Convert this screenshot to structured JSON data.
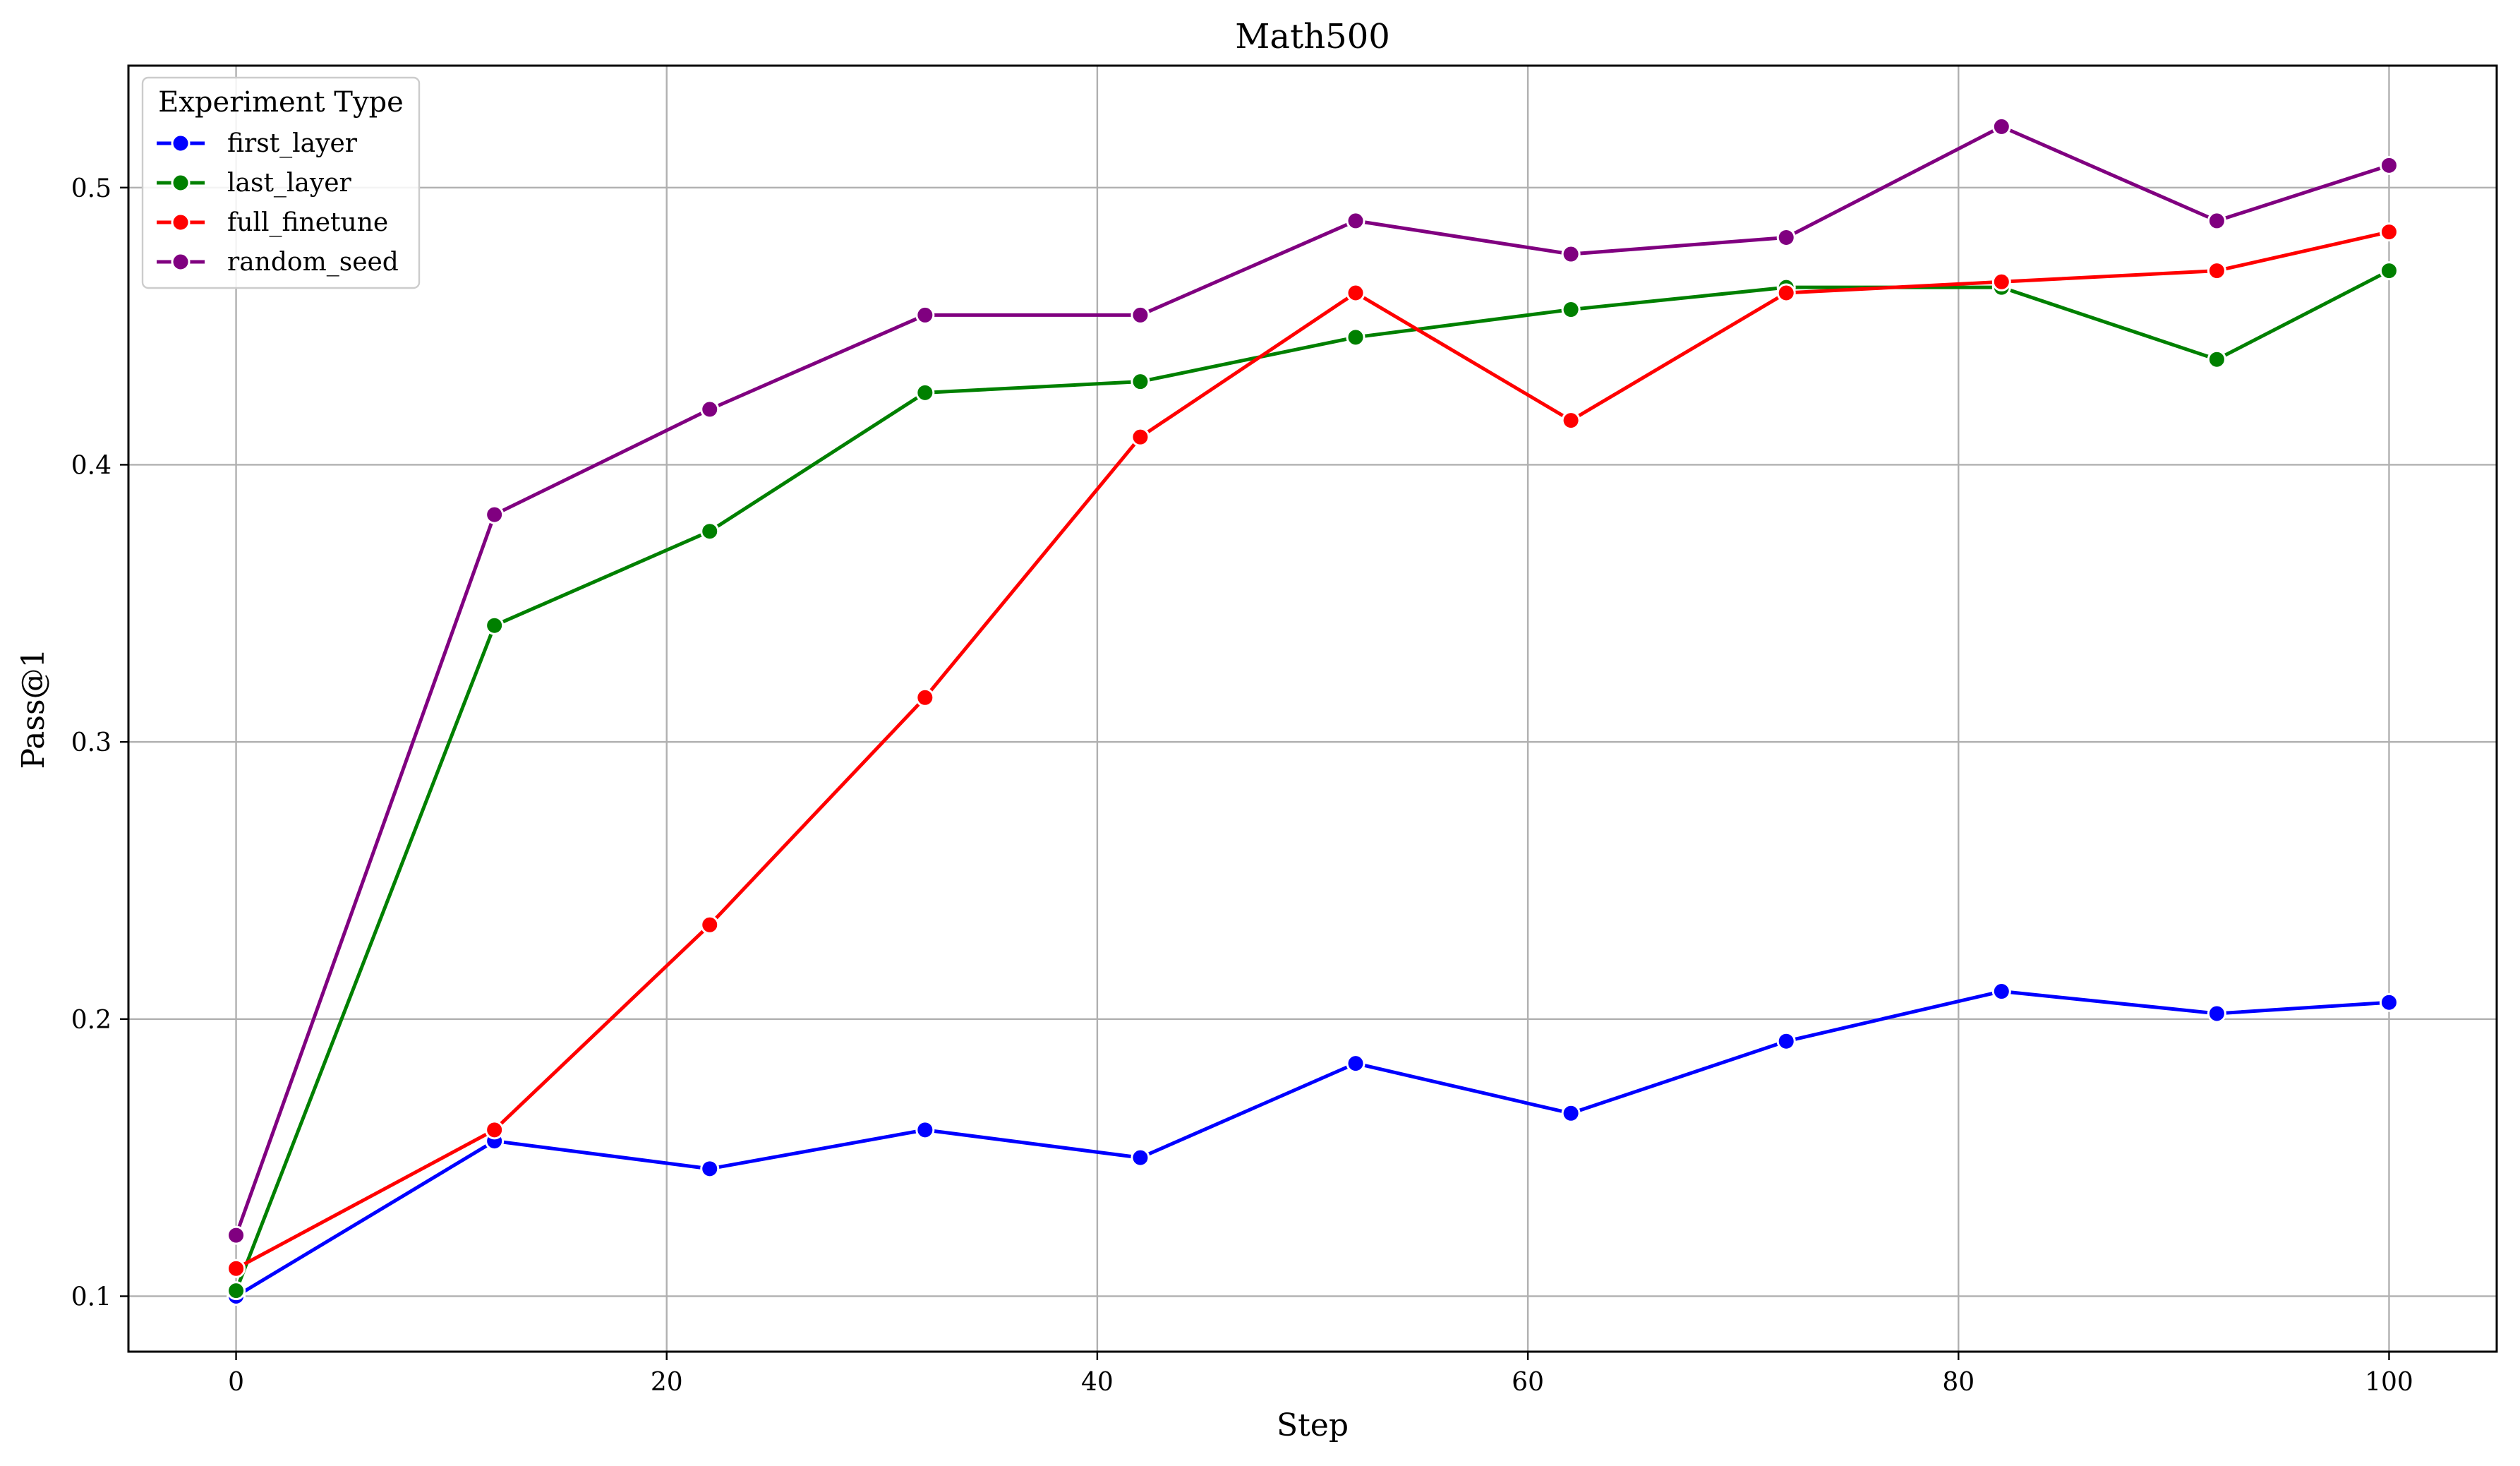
{
  "chart_data": {
    "type": "line",
    "title": "Math500",
    "xlabel": "Step",
    "ylabel": "Pass@1",
    "x": [
      0,
      12,
      22,
      32,
      42,
      52,
      62,
      72,
      82,
      92,
      100
    ],
    "xlim": [
      -5,
      105
    ],
    "ylim": [
      0.08,
      0.544
    ],
    "xticks": [
      0,
      20,
      40,
      60,
      80,
      100
    ],
    "yticks": [
      0.1,
      0.2,
      0.3,
      0.4,
      0.5
    ],
    "xtick_labels": [
      "0",
      "20",
      "40",
      "60",
      "80",
      "100"
    ],
    "ytick_labels": [
      "0.1",
      "0.2",
      "0.3",
      "0.4",
      "0.5"
    ],
    "grid": true,
    "legend": {
      "title": "Experiment Type",
      "placement": "top-left"
    },
    "series": [
      {
        "name": "first_layer",
        "color": "#0000ff",
        "values": [
          0.1,
          0.156,
          0.146,
          0.16,
          0.15,
          0.184,
          0.166,
          0.192,
          0.21,
          0.202,
          0.206
        ]
      },
      {
        "name": "last_layer",
        "color": "#008000",
        "values": [
          0.102,
          0.342,
          0.376,
          0.426,
          0.43,
          0.446,
          0.456,
          0.464,
          0.464,
          0.438,
          0.47
        ]
      },
      {
        "name": "full_finetune",
        "color": "#ff0000",
        "values": [
          0.11,
          0.16,
          0.234,
          0.316,
          0.41,
          0.462,
          0.416,
          0.462,
          0.466,
          0.47,
          0.484
        ]
      },
      {
        "name": "random_seed",
        "color": "#800080",
        "values": [
          0.122,
          0.382,
          0.42,
          0.454,
          0.454,
          0.488,
          0.476,
          0.482,
          0.522,
          0.488,
          0.508
        ]
      }
    ]
  }
}
